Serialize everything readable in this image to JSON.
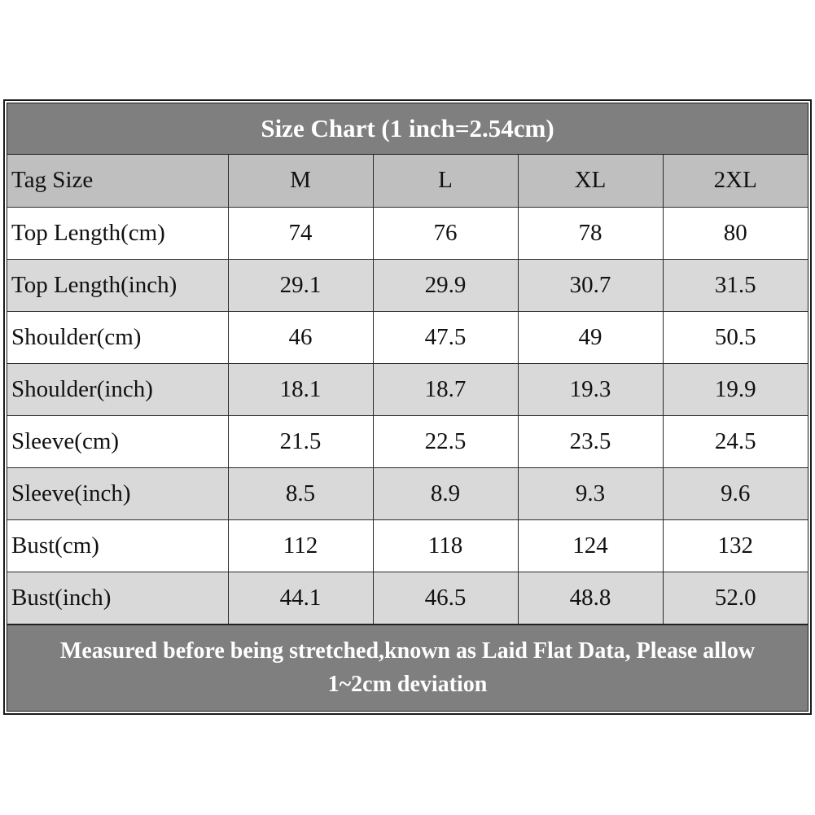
{
  "title": "Size Chart (1 inch=2.54cm)",
  "colors": {
    "title_bg": "#7f7f7f",
    "header_bg": "#bfbfbf",
    "row_white": "#ffffff",
    "row_grey": "#d9d9d9",
    "text_light": "#ffffff",
    "text_dark": "#111111"
  },
  "header": {
    "label": "Tag Size",
    "sizes": [
      "M",
      "L",
      "XL",
      "2XL"
    ]
  },
  "rows": [
    {
      "label": "Top Length(cm)",
      "values": [
        "74",
        "76",
        "78",
        "80"
      ]
    },
    {
      "label": "Top Length(inch)",
      "values": [
        "29.1",
        "29.9",
        "30.7",
        "31.5"
      ]
    },
    {
      "label": "Shoulder(cm)",
      "values": [
        "46",
        "47.5",
        "49",
        "50.5"
      ]
    },
    {
      "label": "Shoulder(inch)",
      "values": [
        "18.1",
        "18.7",
        "19.3",
        "19.9"
      ]
    },
    {
      "label": "Sleeve(cm)",
      "values": [
        "21.5",
        "22.5",
        "23.5",
        "24.5"
      ]
    },
    {
      "label": "Sleeve(inch)",
      "values": [
        "8.5",
        "8.9",
        "9.3",
        "9.6"
      ]
    },
    {
      "label": "Bust(cm)",
      "values": [
        "112",
        "118",
        "124",
        "132"
      ]
    },
    {
      "label": "Bust(inch)",
      "values": [
        "44.1",
        "46.5",
        "48.8",
        "52.0"
      ]
    }
  ],
  "footer": {
    "line1": "Measured before being stretched,known as Laid Flat Data, Please allow",
    "line2": "1~2cm deviation"
  }
}
